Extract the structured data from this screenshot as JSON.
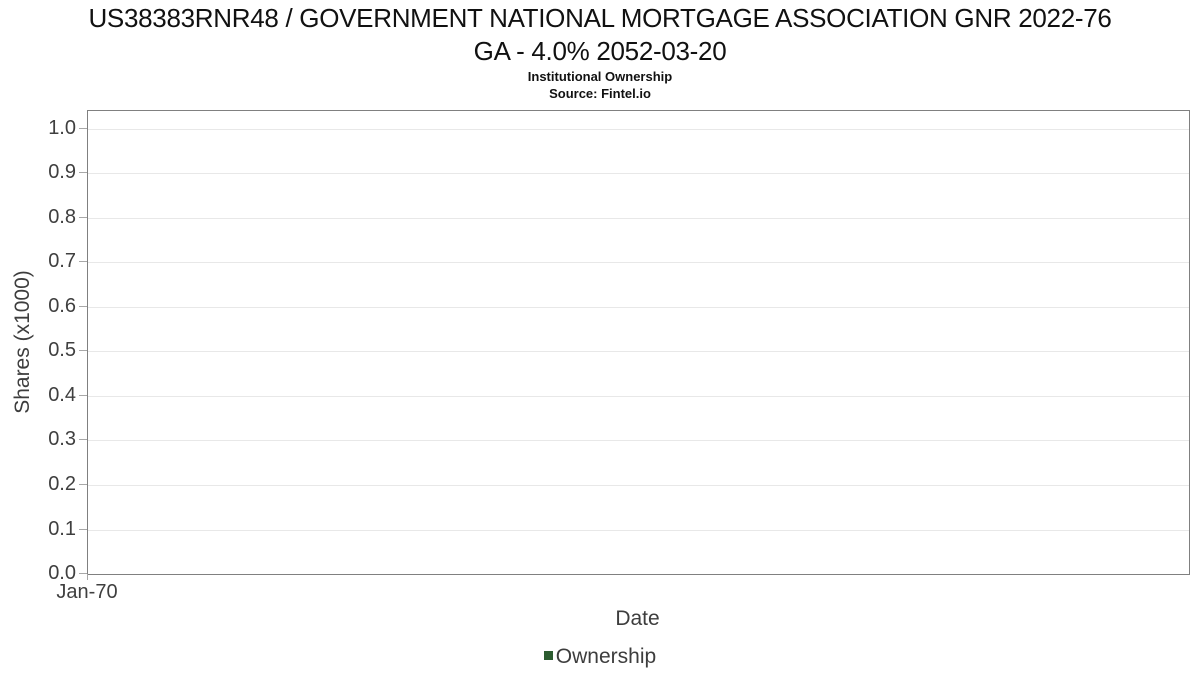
{
  "chart_data": {
    "type": "line",
    "title_lines": [
      "US38383RNR48 / GOVERNMENT NATIONAL MORTGAGE ASSOCIATION GNR 2022-76",
      "GA - 4.0% 2052-03-20"
    ],
    "title": "US38383RNR48 / GOVERNMENT NATIONAL MORTGAGE ASSOCIATION GNR 2022-76 GA - 4.0% 2052-03-20",
    "subtitle": "Institutional Ownership",
    "source": "Source: Fintel.io",
    "xlabel": "Date",
    "ylabel": "Shares (x1000)",
    "ylim": [
      0.0,
      1.04
    ],
    "grid": true,
    "yticks": [
      {
        "value": 0.0,
        "label": "0.0"
      },
      {
        "value": 0.1,
        "label": "0.1"
      },
      {
        "value": 0.2,
        "label": "0.2"
      },
      {
        "value": 0.3,
        "label": "0.3"
      },
      {
        "value": 0.4,
        "label": "0.4"
      },
      {
        "value": 0.5,
        "label": "0.5"
      },
      {
        "value": 0.6,
        "label": "0.6"
      },
      {
        "value": 0.7,
        "label": "0.7"
      },
      {
        "value": 0.8,
        "label": "0.8"
      },
      {
        "value": 0.9,
        "label": "0.9"
      },
      {
        "value": 1.0,
        "label": "1.0"
      }
    ],
    "xticks": [
      "Jan-70"
    ],
    "series": [
      {
        "name": "Ownership",
        "color": "#2c5c30",
        "x": [],
        "values": []
      }
    ],
    "legend": {
      "position": "bottom-center",
      "entries": [
        "Ownership"
      ]
    },
    "colors": {
      "spine": "#808080",
      "grid": "#e8e8e8",
      "tick_text": "#3f3f3f",
      "ownership": "#2c5c30"
    }
  }
}
